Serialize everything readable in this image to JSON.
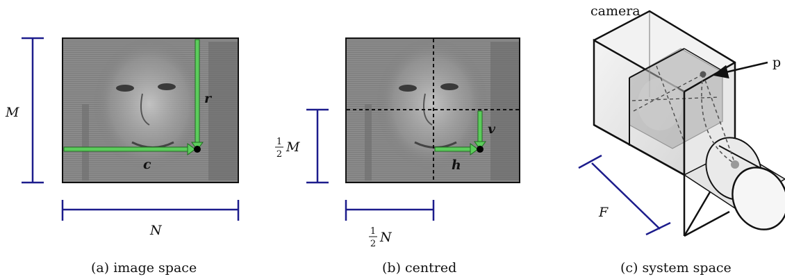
{
  "panel_a": {
    "dim_height": "M",
    "dim_width": "N",
    "vector_row": "r",
    "vector_col": "c",
    "caption": "(a)  image space"
  },
  "panel_b": {
    "half_height_num": "1",
    "half_height_den": "2",
    "half_height_var": "M",
    "half_width_num": "1",
    "half_width_den": "2",
    "half_width_var": "N",
    "vector_v": "v",
    "vector_h": "h",
    "caption": "(b)  centred"
  },
  "panel_c": {
    "camera_label": "camera",
    "point_label": "p",
    "focal_label": "F",
    "caption": "(c)  system space"
  },
  "colors": {
    "dimension": "#1c1c8c",
    "arrow": "#5ccc5c",
    "arrow_stroke": "#1f6a1f",
    "photo": "#8a8a8a"
  }
}
